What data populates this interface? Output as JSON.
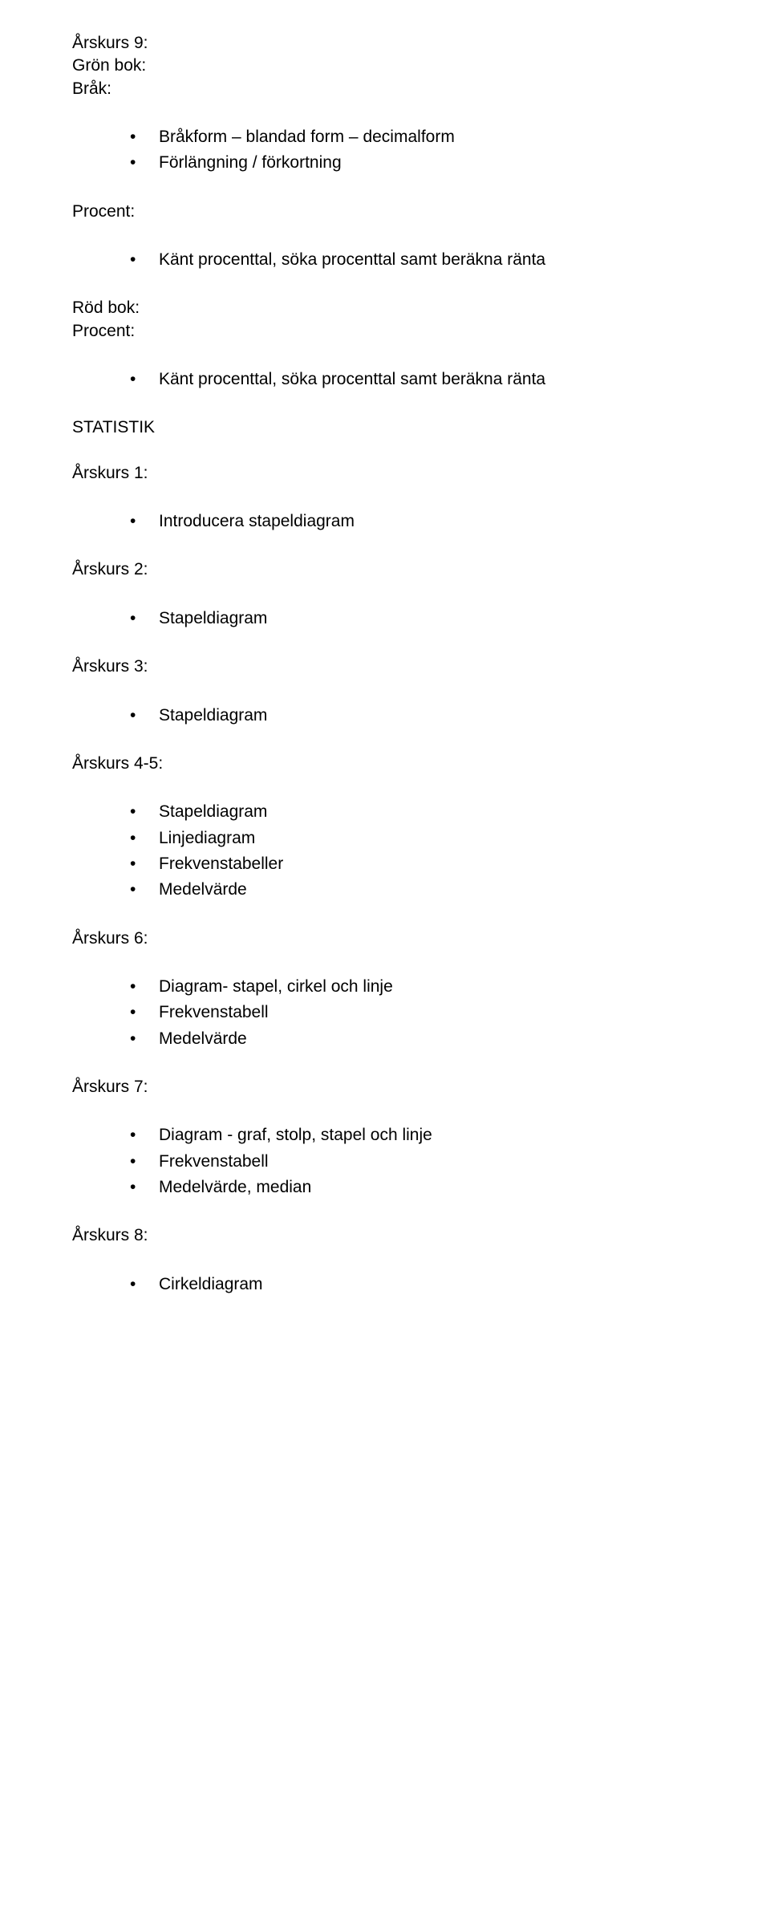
{
  "head": {
    "line1": "Årskurs 9:",
    "line2": "Grön bok:",
    "line3": "Bråk:"
  },
  "bullets_a": [
    "Bråkform – blandad form – decimalform",
    "Förlängning / förkortning"
  ],
  "procent_label": "Procent:",
  "bullets_b": [
    "Känt procenttal, söka procenttal samt beräkna ränta"
  ],
  "rod": {
    "line1": "Röd bok:",
    "line2": "Procent:"
  },
  "bullets_c": [
    "Känt procenttal, söka procenttal samt beräkna ränta"
  ],
  "statistik_label": "STATISTIK",
  "ars1_label": "Årskurs 1:",
  "bullets_d": [
    "Introducera stapeldiagram"
  ],
  "ars2_label": "Årskurs 2:",
  "bullets_e": [
    "Stapeldiagram"
  ],
  "ars3_label": "Årskurs 3:",
  "bullets_f": [
    "Stapeldiagram"
  ],
  "ars45_label": "Årskurs 4-5:",
  "bullets_g": [
    "Stapeldiagram",
    "Linjediagram",
    "Frekvenstabeller",
    "Medelvärde"
  ],
  "ars6_label": "Årskurs 6:",
  "bullets_h": [
    "Diagram- stapel, cirkel och linje",
    "Frekvenstabell",
    "Medelvärde"
  ],
  "ars7_label": "Årskurs 7:",
  "bullets_i": [
    "Diagram - graf, stolp, stapel och linje",
    "Frekvenstabell",
    "Medelvärde, median"
  ],
  "ars8_label": "Årskurs 8:",
  "bullets_j": [
    "Cirkeldiagram"
  ]
}
